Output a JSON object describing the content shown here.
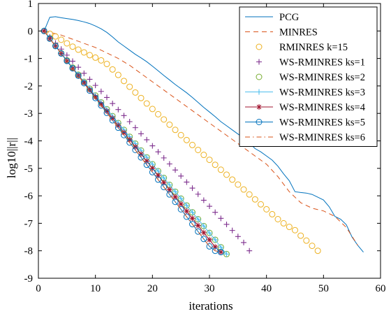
{
  "chart_data": {
    "type": "line",
    "xlabel": "iterations",
    "ylabel": "log10||r||",
    "xlim": [
      0,
      60
    ],
    "ylim": [
      -9,
      1
    ],
    "xticks": [
      0,
      10,
      20,
      30,
      40,
      50,
      60
    ],
    "yticks": [
      1,
      0,
      -1,
      -2,
      -3,
      -4,
      -5,
      -6,
      -7,
      -8,
      -9
    ],
    "grid": false,
    "legend_position": "top-right",
    "series": [
      {
        "name": "PCG",
        "style": "solid",
        "marker": "none",
        "color": "#0072BD",
        "x": [
          1,
          2,
          3,
          4,
          5,
          6,
          7,
          8,
          9,
          10,
          11,
          12,
          13,
          14,
          15,
          16,
          17,
          18,
          19,
          20,
          21,
          22,
          23,
          24,
          25,
          26,
          27,
          28,
          29,
          30,
          31,
          32,
          33,
          34,
          35,
          36,
          37,
          38,
          39,
          40,
          41,
          42,
          43,
          44,
          45,
          46,
          47,
          48,
          49,
          50,
          51,
          52,
          53,
          54,
          55,
          56,
          57
        ],
        "y": [
          0,
          0.5,
          0.52,
          0.48,
          0.45,
          0.42,
          0.38,
          0.33,
          0.27,
          0.18,
          0.08,
          -0.05,
          -0.22,
          -0.4,
          -0.55,
          -0.7,
          -0.85,
          -0.98,
          -1.12,
          -1.28,
          -1.45,
          -1.62,
          -1.78,
          -1.95,
          -2.1,
          -2.25,
          -2.42,
          -2.6,
          -2.78,
          -2.95,
          -3.12,
          -3.3,
          -3.45,
          -3.6,
          -3.75,
          -3.9,
          -4.08,
          -4.28,
          -4.4,
          -4.55,
          -4.7,
          -4.92,
          -5.2,
          -5.45,
          -5.85,
          -5.88,
          -5.9,
          -5.95,
          -6.05,
          -6.15,
          -6.4,
          -6.75,
          -6.85,
          -7.05,
          -7.5,
          -7.8,
          -8.05
        ]
      },
      {
        "name": "MINRES",
        "style": "dashed",
        "marker": "none",
        "color": "#D95319",
        "x": [
          1,
          2,
          4,
          6,
          8,
          10,
          12,
          14,
          16,
          18,
          20,
          22,
          24,
          26,
          28,
          30,
          32,
          34,
          36,
          38,
          40,
          42,
          44,
          46,
          48,
          50,
          52,
          54,
          56
        ],
        "y": [
          0,
          -0.05,
          -0.15,
          -0.3,
          -0.45,
          -0.6,
          -0.8,
          -1.0,
          -1.25,
          -1.55,
          -1.85,
          -2.15,
          -2.45,
          -2.75,
          -3.05,
          -3.35,
          -3.65,
          -3.95,
          -4.25,
          -4.55,
          -4.85,
          -5.3,
          -5.85,
          -6.25,
          -6.45,
          -6.55,
          -6.75,
          -7.15,
          -7.8
        ]
      },
      {
        "name": "RMINRES k=15",
        "style": "none",
        "marker": "circle",
        "color": "#EDB120",
        "x": [
          1,
          2,
          3,
          4,
          5,
          6,
          7,
          8,
          9,
          10,
          11,
          12,
          13,
          14,
          15,
          16,
          17,
          18,
          19,
          20,
          21,
          22,
          23,
          24,
          25,
          26,
          27,
          28,
          29,
          30,
          31,
          32,
          33,
          34,
          35,
          36,
          37,
          38,
          39,
          40,
          41,
          42,
          43,
          44,
          45,
          46,
          47,
          48,
          49
        ],
        "y": [
          0,
          -0.1,
          -0.2,
          -0.32,
          -0.45,
          -0.57,
          -0.68,
          -0.78,
          -0.88,
          -0.97,
          -1.07,
          -1.2,
          -1.4,
          -1.6,
          -1.82,
          -2.03,
          -2.24,
          -2.44,
          -2.64,
          -2.84,
          -3.03,
          -3.22,
          -3.41,
          -3.6,
          -3.79,
          -3.97,
          -4.15,
          -4.33,
          -4.51,
          -4.69,
          -4.87,
          -5.05,
          -5.23,
          -5.41,
          -5.59,
          -5.77,
          -5.95,
          -6.13,
          -6.31,
          -6.49,
          -6.67,
          -6.85,
          -7.0,
          -7.13,
          -7.25,
          -7.45,
          -7.63,
          -7.82,
          -8.0
        ]
      },
      {
        "name": "WS-RMINRES ks=1",
        "style": "none",
        "marker": "plus",
        "color": "#7E2F8E",
        "x": [
          1,
          2,
          3,
          4,
          5,
          6,
          7,
          8,
          9,
          10,
          11,
          12,
          13,
          14,
          15,
          16,
          17,
          18,
          19,
          20,
          21,
          22,
          23,
          24,
          25,
          26,
          27,
          28,
          29,
          30,
          31,
          32,
          33,
          34,
          35,
          36,
          37
        ],
        "y": [
          0,
          -0.22,
          -0.44,
          -0.66,
          -0.88,
          -1.1,
          -1.32,
          -1.54,
          -1.76,
          -1.98,
          -2.2,
          -2.42,
          -2.64,
          -2.86,
          -3.08,
          -3.3,
          -3.52,
          -3.74,
          -3.96,
          -4.18,
          -4.4,
          -4.62,
          -4.84,
          -5.06,
          -5.28,
          -5.5,
          -5.72,
          -5.94,
          -6.16,
          -6.38,
          -6.6,
          -6.82,
          -7.04,
          -7.26,
          -7.48,
          -7.7,
          -8.0
        ]
      },
      {
        "name": "WS-RMINRES ks=2",
        "style": "none",
        "marker": "circle",
        "color": "#77AC30",
        "x": [
          1,
          2,
          3,
          4,
          5,
          6,
          7,
          8,
          9,
          10,
          11,
          12,
          13,
          14,
          15,
          16,
          17,
          18,
          19,
          20,
          21,
          22,
          23,
          24,
          25,
          26,
          27,
          28,
          29,
          30,
          31,
          32,
          33
        ],
        "y": [
          0,
          -0.27,
          -0.54,
          -0.81,
          -1.07,
          -1.33,
          -1.59,
          -1.85,
          -2.1,
          -2.35,
          -2.6,
          -2.85,
          -3.1,
          -3.35,
          -3.6,
          -3.85,
          -4.1,
          -4.35,
          -4.6,
          -4.85,
          -5.1,
          -5.35,
          -5.6,
          -5.85,
          -6.1,
          -6.35,
          -6.6,
          -6.85,
          -7.1,
          -7.35,
          -7.6,
          -7.87,
          -8.12
        ]
      },
      {
        "name": "WS-RMINRES ks=3",
        "style": "solid",
        "marker": "plus",
        "color": "#4DBEEE",
        "x": [
          1,
          2,
          3,
          4,
          5,
          6,
          7,
          8,
          9,
          10,
          11,
          12,
          13,
          14,
          15,
          16,
          17,
          18,
          19,
          20,
          21,
          22,
          23,
          24,
          25,
          26,
          27,
          28,
          29,
          30,
          31,
          32,
          33
        ],
        "y": [
          0,
          -0.27,
          -0.54,
          -0.81,
          -1.07,
          -1.33,
          -1.59,
          -1.85,
          -2.1,
          -2.35,
          -2.6,
          -2.85,
          -3.1,
          -3.35,
          -3.6,
          -3.85,
          -4.1,
          -4.35,
          -4.6,
          -4.85,
          -5.1,
          -5.35,
          -5.6,
          -5.85,
          -6.1,
          -6.35,
          -6.6,
          -6.85,
          -7.1,
          -7.35,
          -7.6,
          -7.87,
          -8.12
        ]
      },
      {
        "name": "WS-RMINRES ks=4",
        "style": "solid",
        "marker": "asterisk",
        "color": "#A2142F",
        "x": [
          1,
          2,
          3,
          4,
          5,
          6,
          7,
          8,
          9,
          10,
          11,
          12,
          13,
          14,
          15,
          16,
          17,
          18,
          19,
          20,
          21,
          22,
          23,
          24,
          25,
          26,
          27,
          28,
          29,
          30,
          31,
          32
        ],
        "y": [
          0,
          -0.28,
          -0.55,
          -0.82,
          -1.09,
          -1.36,
          -1.62,
          -1.88,
          -2.14,
          -2.4,
          -2.66,
          -2.92,
          -3.18,
          -3.44,
          -3.7,
          -3.96,
          -4.22,
          -4.48,
          -4.74,
          -5.0,
          -5.26,
          -5.52,
          -5.78,
          -6.04,
          -6.3,
          -6.56,
          -6.82,
          -7.08,
          -7.34,
          -7.6,
          -7.86,
          -8.05
        ]
      },
      {
        "name": "WS-RMINRES ks=5",
        "style": "solid",
        "marker": "circle",
        "color": "#0072BD",
        "x": [
          1,
          2,
          3,
          4,
          5,
          6,
          7,
          8,
          9,
          10,
          11,
          12,
          13,
          14,
          15,
          16,
          17,
          18,
          19,
          20,
          21,
          22,
          23,
          24,
          25,
          26,
          27,
          28,
          29,
          30,
          31,
          32
        ],
        "y": [
          0,
          -0.28,
          -0.55,
          -0.82,
          -1.09,
          -1.36,
          -1.63,
          -1.9,
          -2.17,
          -2.44,
          -2.71,
          -2.98,
          -3.25,
          -3.52,
          -3.79,
          -4.06,
          -4.33,
          -4.6,
          -4.87,
          -5.14,
          -5.41,
          -5.68,
          -5.95,
          -6.22,
          -6.49,
          -6.76,
          -7.03,
          -7.3,
          -7.57,
          -7.84,
          -8.0,
          -8.05
        ]
      },
      {
        "name": "WS-RMINRES ks=6",
        "style": "dashdot",
        "marker": "none",
        "color": "#D95319",
        "x": [
          1,
          2,
          3,
          4,
          5,
          6,
          7,
          8,
          9,
          10,
          11,
          12,
          13,
          14,
          15,
          16,
          17,
          18,
          19,
          20,
          21,
          22,
          23,
          24,
          25,
          26,
          27,
          28,
          29,
          30,
          31,
          32
        ],
        "y": [
          0,
          -0.28,
          -0.55,
          -0.82,
          -1.09,
          -1.36,
          -1.63,
          -1.9,
          -2.17,
          -2.44,
          -2.71,
          -2.98,
          -3.25,
          -3.52,
          -3.79,
          -4.06,
          -4.33,
          -4.6,
          -4.87,
          -5.14,
          -5.41,
          -5.68,
          -5.95,
          -6.22,
          -6.49,
          -6.76,
          -7.03,
          -7.3,
          -7.57,
          -7.84,
          -8.0,
          -8.05
        ]
      }
    ]
  }
}
